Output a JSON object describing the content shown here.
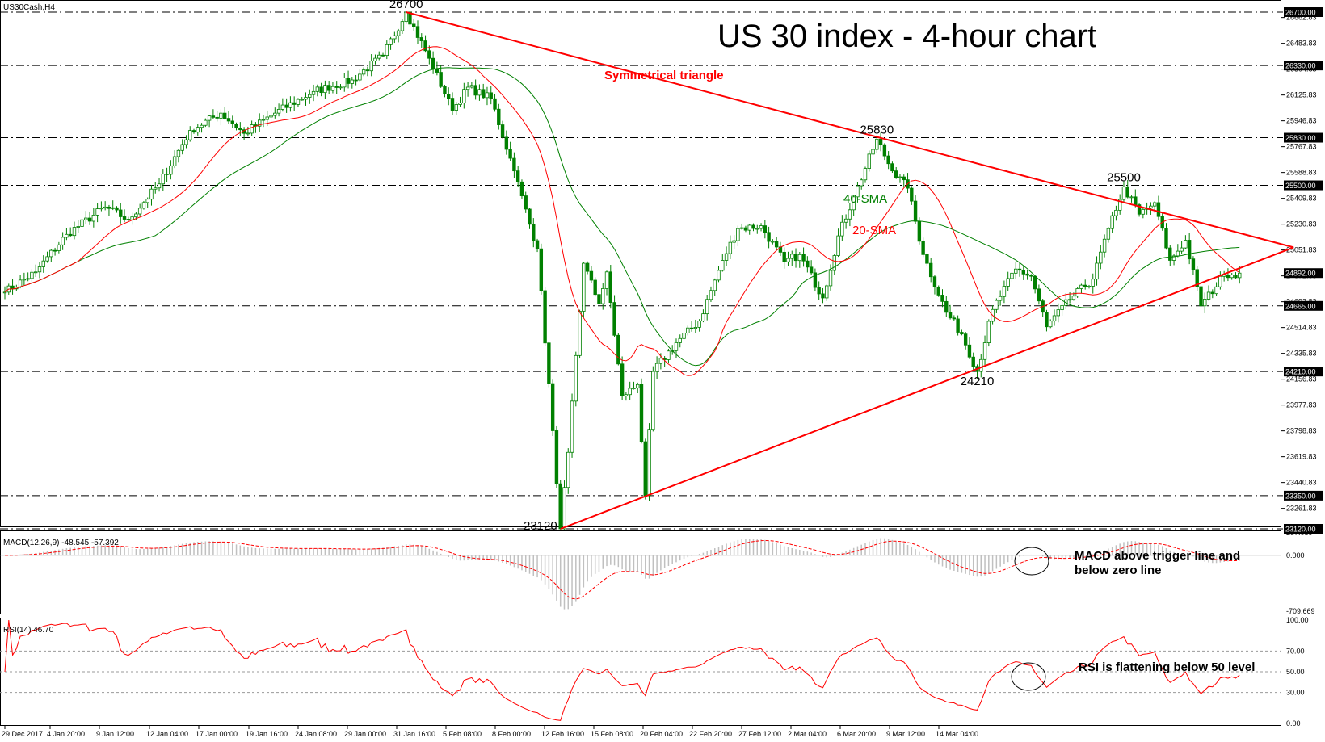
{
  "chart_data": {
    "type": "candlestick",
    "symbol_label": "US30Cash,H4",
    "title": "US 30 index - 4-hour chart",
    "price_axis": {
      "ylim": [
        23120,
        26700
      ],
      "ticks": [
        "26662.83",
        "26483.83",
        "26304.83",
        "26125.83",
        "25946.83",
        "25767.83",
        "25588.83",
        "25409.83",
        "25230.83",
        "25051.83",
        "24872.83",
        "24693.83",
        "24514.83",
        "24335.83",
        "24156.83",
        "23977.83",
        "23798.83",
        "23619.83",
        "23440.83",
        "23261.83",
        "23082.83"
      ],
      "highlighted_levels": [
        {
          "value": 26700,
          "label": "26700.00"
        },
        {
          "value": 26330,
          "label": "26330.00"
        },
        {
          "value": 25830,
          "label": "25830.00"
        },
        {
          "value": 25500,
          "label": "25500.00"
        },
        {
          "value": 24892,
          "label": "24892.00"
        },
        {
          "value": 24665,
          "label": "24665.00"
        },
        {
          "value": 24210,
          "label": "24210.00"
        },
        {
          "value": 23350,
          "label": "23350.00"
        },
        {
          "value": 23120,
          "label": "23120.00"
        }
      ],
      "current_price": 24892
    },
    "x_axis_labels": [
      "29 Dec 2017",
      "4 Jan 20:00",
      "9 Jan 12:00",
      "12 Jan 04:00",
      "17 Jan 00:00",
      "19 Jan 16:00",
      "24 Jan 08:00",
      "29 Jan 00:00",
      "31 Jan 16:00",
      "5 Feb 08:00",
      "8 Feb 00:00",
      "12 Feb 16:00",
      "15 Feb 08:00",
      "20 Feb 04:00",
      "22 Feb 20:00",
      "27 Feb 12:00",
      "2 Mar 04:00",
      "6 Mar 20:00",
      "9 Mar 12:00",
      "14 Mar 04:00"
    ],
    "horizontal_levels": [
      26700,
      26330,
      25830,
      25500,
      24665,
      24210,
      23350,
      23120
    ],
    "price_anchors": [
      [
        0,
        24760
      ],
      [
        8,
        24900
      ],
      [
        16,
        25160
      ],
      [
        26,
        25350
      ],
      [
        32,
        25260
      ],
      [
        40,
        25510
      ],
      [
        48,
        25880
      ],
      [
        56,
        26000
      ],
      [
        62,
        25860
      ],
      [
        70,
        26000
      ],
      [
        80,
        26150
      ],
      [
        90,
        26230
      ],
      [
        98,
        26400
      ],
      [
        104,
        26700
      ],
      [
        110,
        26380
      ],
      [
        116,
        26020
      ],
      [
        120,
        26180
      ],
      [
        126,
        26100
      ],
      [
        132,
        25600
      ],
      [
        136,
        25230
      ],
      [
        138,
        25060
      ],
      [
        142,
        23800
      ],
      [
        144,
        23120
      ],
      [
        146,
        23650
      ],
      [
        150,
        24960
      ],
      [
        154,
        24680
      ],
      [
        156,
        24900
      ],
      [
        160,
        24040
      ],
      [
        164,
        24120
      ],
      [
        166,
        23350
      ],
      [
        168,
        24210
      ],
      [
        174,
        24410
      ],
      [
        180,
        24560
      ],
      [
        186,
        24980
      ],
      [
        190,
        25200
      ],
      [
        196,
        25220
      ],
      [
        202,
        24970
      ],
      [
        206,
        25020
      ],
      [
        212,
        24720
      ],
      [
        216,
        25150
      ],
      [
        220,
        25420
      ],
      [
        226,
        25820
      ],
      [
        230,
        25600
      ],
      [
        234,
        25480
      ],
      [
        238,
        25020
      ],
      [
        244,
        24620
      ],
      [
        248,
        24470
      ],
      [
        252,
        24210
      ],
      [
        256,
        24640
      ],
      [
        262,
        24920
      ],
      [
        266,
        24870
      ],
      [
        270,
        24520
      ],
      [
        276,
        24710
      ],
      [
        282,
        24850
      ],
      [
        286,
        25200
      ],
      [
        290,
        25490
      ],
      [
        294,
        25300
      ],
      [
        298,
        25380
      ],
      [
        302,
        24980
      ],
      [
        306,
        25120
      ],
      [
        310,
        24665
      ],
      [
        316,
        24880
      ],
      [
        320,
        24892
      ]
    ],
    "series": [
      {
        "name": "40-SMA",
        "color": "#008000",
        "period": 40
      },
      {
        "name": "20-SMA",
        "color": "#ff0000",
        "period": 20
      }
    ],
    "pattern": {
      "label": "Symmetrical triangle",
      "upper_line": [
        [
          104,
          26700
        ],
        [
          334,
          25070
        ]
      ],
      "lower_line": [
        [
          144,
          23120
        ],
        [
          334,
          25070
        ]
      ]
    },
    "annotations": [
      {
        "text": "26700",
        "bar": 104,
        "price": 26700,
        "pos": "above"
      },
      {
        "text": "25830",
        "bar": 226,
        "price": 25830,
        "pos": "above"
      },
      {
        "text": "25500",
        "bar": 290,
        "price": 25500,
        "pos": "above"
      },
      {
        "text": "24210",
        "bar": 252,
        "price": 24210,
        "pos": "below"
      },
      {
        "text": "23120",
        "bar": 144,
        "price": 23120,
        "pos": "left"
      }
    ],
    "macd": {
      "label": "MACD(12,26,9) -48.545 -57.392",
      "params": [
        12,
        26,
        9
      ],
      "value": -48.545,
      "signal_value": -57.392,
      "ylim": [
        -709.669,
        287.039
      ],
      "ticks": [
        "287.039",
        "0.000",
        "-709.669"
      ],
      "note": "MACD above trigger line and below zero line"
    },
    "rsi": {
      "label": "RSI(14) 46.70",
      "period": 14,
      "value": 46.7,
      "ylim": [
        0,
        100
      ],
      "ticks": [
        "100.00",
        "70.00",
        "50.00",
        "30.00",
        "0.00"
      ],
      "levels": [
        70,
        50,
        30
      ],
      "note": "RSI is flattening below 50 level"
    },
    "colors": {
      "candle": "#008000",
      "upper_trend": "#ff0000",
      "highlight_label_bg": "#000000",
      "highlight_label_fg": "#ffffff",
      "macd_signal": "#ff0000",
      "rsi_line": "#ff0000",
      "macd_hist": "#c0c0c0"
    }
  }
}
